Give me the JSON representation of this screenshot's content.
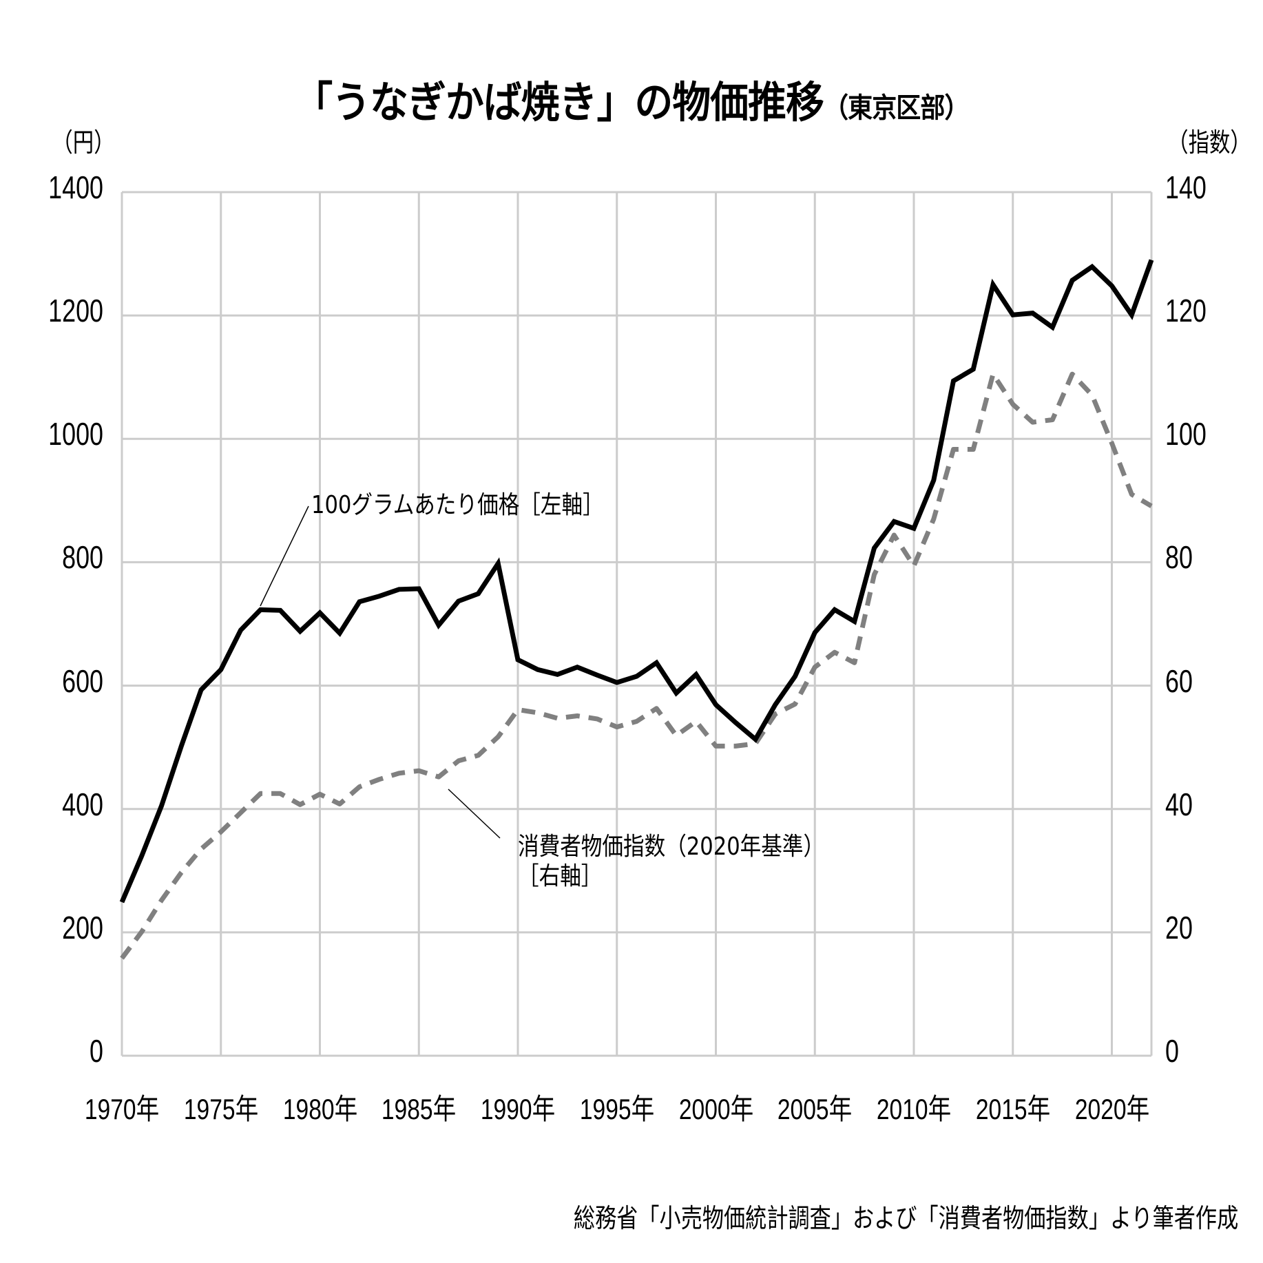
{
  "title": {
    "main": "「うなぎかば焼き」の物価推移",
    "sub": "（東京区部）"
  },
  "axes": {
    "left_unit": "（円）",
    "right_unit": "（指数）",
    "left_ticks": [
      "1400",
      "1200",
      "1000",
      "800",
      "600",
      "400",
      "200",
      "0"
    ],
    "right_ticks": [
      "140",
      "120",
      "100",
      "80",
      "60",
      "40",
      "20",
      "0"
    ],
    "x_ticks": [
      "1970年",
      "1975年",
      "1980年",
      "1985年",
      "1990年",
      "1995年",
      "2000年",
      "2005年",
      "2010年",
      "2015年",
      "2020年"
    ]
  },
  "annotations": {
    "price_label": "100グラムあたり価格［左軸］",
    "cpi_label_line1": "消費者物価指数（2020年基準）",
    "cpi_label_line2": "［右軸］"
  },
  "source": "総務省「小売物価統計調査」および「消費者物価指数」より筆者作成",
  "colors": {
    "price_line": "#000000",
    "cpi_line": "#808080",
    "grid": "#cccccc"
  },
  "chart_data": {
    "type": "line",
    "title": "「うなぎかば焼き」の物価推移（東京区部）",
    "xlabel": "",
    "ylabel": "円",
    "ylabel_right": "指数",
    "ylim": [
      0,
      1400
    ],
    "ylim_right": [
      0,
      140
    ],
    "grid": true,
    "x": [
      1970,
      1971,
      1972,
      1973,
      1974,
      1975,
      1976,
      1977,
      1978,
      1979,
      1980,
      1981,
      1982,
      1983,
      1984,
      1985,
      1986,
      1987,
      1988,
      1989,
      1990,
      1991,
      1992,
      1993,
      1994,
      1995,
      1996,
      1997,
      1998,
      1999,
      2000,
      2001,
      2002,
      2003,
      2004,
      2005,
      2006,
      2007,
      2008,
      2009,
      2010,
      2011,
      2012,
      2013,
      2014,
      2015,
      2016,
      2017,
      2018,
      2019,
      2020,
      2021,
      2022
    ],
    "series": [
      {
        "name": "100グラムあたり価格［左軸］",
        "axis": "left",
        "style": "solid",
        "values": [
          249,
          324,
          405,
          502,
          593,
          626,
          690,
          723,
          722,
          688,
          718,
          685,
          736,
          745,
          756,
          757,
          698,
          737,
          749,
          798,
          642,
          626,
          618,
          630,
          617,
          605,
          615,
          637,
          588,
          618,
          569,
          540,
          513,
          569,
          615,
          686,
          723,
          704,
          823,
          866,
          855,
          933,
          1094,
          1113,
          1250,
          1201,
          1204,
          1181,
          1257,
          1279,
          1248,
          1201,
          1290
        ]
      },
      {
        "name": "消費者物価指数（2020年基準）［右軸］",
        "axis": "right",
        "style": "dashed",
        "values": [
          15.8,
          20.1,
          25.2,
          29.7,
          33.5,
          36.3,
          39.4,
          42.5,
          42.5,
          40.7,
          42.4,
          40.8,
          43.6,
          44.8,
          45.8,
          46.2,
          45.2,
          47.8,
          48.7,
          51.7,
          56.1,
          55.6,
          54.7,
          55.1,
          54.6,
          53.3,
          54.2,
          56.3,
          51.9,
          54.2,
          50.2,
          50.2,
          50.6,
          55.4,
          57.0,
          63.0,
          65.4,
          63.7,
          78.0,
          84.4,
          79.4,
          87.0,
          98.3,
          98.3,
          110.5,
          105.6,
          102.7,
          103.1,
          110.5,
          107.1,
          99.3,
          91.0,
          89.1
        ]
      }
    ]
  }
}
